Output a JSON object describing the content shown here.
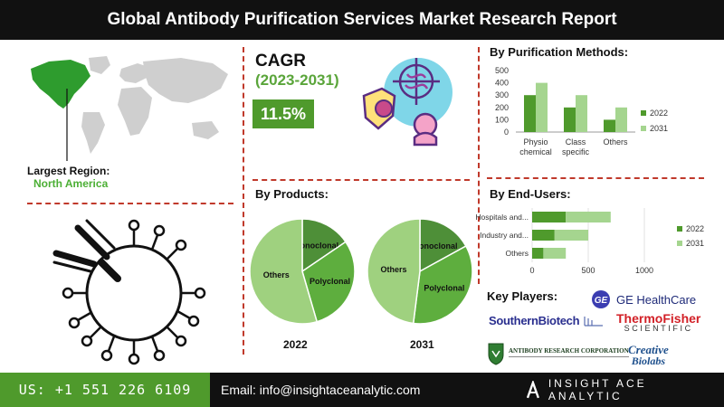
{
  "header": {
    "title": "Global Antibody Purification Services Market Research Report"
  },
  "region": {
    "label": "Largest Region:",
    "value": "North America"
  },
  "cagr": {
    "title": "CAGR",
    "period": "(2023-2031)",
    "value": "11.5%"
  },
  "colors": {
    "accent_green": "#4f9a2c",
    "light_green": "#a5d58f",
    "dark": "#111111",
    "divider": "#c0392b",
    "map_gray": "#cfcfcf",
    "map_highlight": "#2e9c2e"
  },
  "products": {
    "title": "By Products:",
    "pies": [
      {
        "year": "2022",
        "slices": [
          {
            "label": "Monoclonal",
            "share": 0.155,
            "color": "#4e8f38"
          },
          {
            "label": "Polyclonal",
            "share": 0.3,
            "color": "#5eae3e"
          },
          {
            "label": "Others",
            "share": 0.545,
            "color": "#9fd17f"
          }
        ]
      },
      {
        "year": "2031",
        "slices": [
          {
            "label": "Monoclonal",
            "share": 0.17,
            "color": "#4e8f38"
          },
          {
            "label": "Polyclonal",
            "share": 0.35,
            "color": "#5eae3e"
          },
          {
            "label": "Others",
            "share": 0.48,
            "color": "#9fd17f"
          }
        ]
      }
    ]
  },
  "chart_data": [
    {
      "type": "bar",
      "title": "By Purification Methods:",
      "categories": [
        "Physio chemical",
        "Class specific",
        "Others"
      ],
      "category_lines": [
        [
          "Physio",
          "chemical"
        ],
        [
          "Class",
          "specific"
        ],
        [
          "Others"
        ]
      ],
      "series": [
        {
          "name": "2022",
          "values": [
            300,
            200,
            100
          ],
          "color": "#4f9a2c"
        },
        {
          "name": "2031",
          "values": [
            400,
            300,
            200
          ],
          "color": "#a5d58f"
        }
      ],
      "ylim": [
        0,
        500
      ],
      "yticks": [
        "0",
        "100",
        "200",
        "300",
        "400",
        "500"
      ],
      "legend": "right",
      "grid": false
    },
    {
      "type": "bar",
      "orientation": "horizontal-stacked",
      "title": "By End-Users:",
      "categories": [
        "Hospitals and...",
        "Industry and...",
        "Others"
      ],
      "series": [
        {
          "name": "2022",
          "values": [
            300,
            200,
            100
          ],
          "color": "#4f9a2c"
        },
        {
          "name": "2031",
          "values": [
            400,
            300,
            200
          ],
          "color": "#a5d58f"
        }
      ],
      "xlim": [
        0,
        1000
      ],
      "xticks": [
        "0",
        "500",
        "1000"
      ],
      "legend": "right",
      "grid": true
    },
    {
      "type": "pie",
      "title": "By Products:",
      "pies": [
        {
          "year": "2022",
          "labels": [
            "Monoclonal",
            "Polyclonal",
            "Others"
          ],
          "values": [
            15.5,
            30,
            54.5
          ]
        },
        {
          "year": "2031",
          "labels": [
            "Monoclonal",
            "Polyclonal",
            "Others"
          ],
          "values": [
            17,
            35,
            48
          ]
        }
      ]
    }
  ],
  "key_players": {
    "title": "Key Players:",
    "ge": "GE HealthCare",
    "southern": "SouthernBiotech",
    "thermo_top": "ThermoFisher",
    "thermo_bottom": "SCIENTIFIC",
    "abrc": "ANTIBODY RESEARCH CORPORATION",
    "creative_top": "Creative",
    "creative_bottom": "Biolabs"
  },
  "footer": {
    "phone": "US: +1 551 226 6109",
    "email": "Email: info@insightaceanalytic.com",
    "brand": "INSIGHT ACE ANALYTIC",
    "brand_icon": "a-letter-icon"
  }
}
